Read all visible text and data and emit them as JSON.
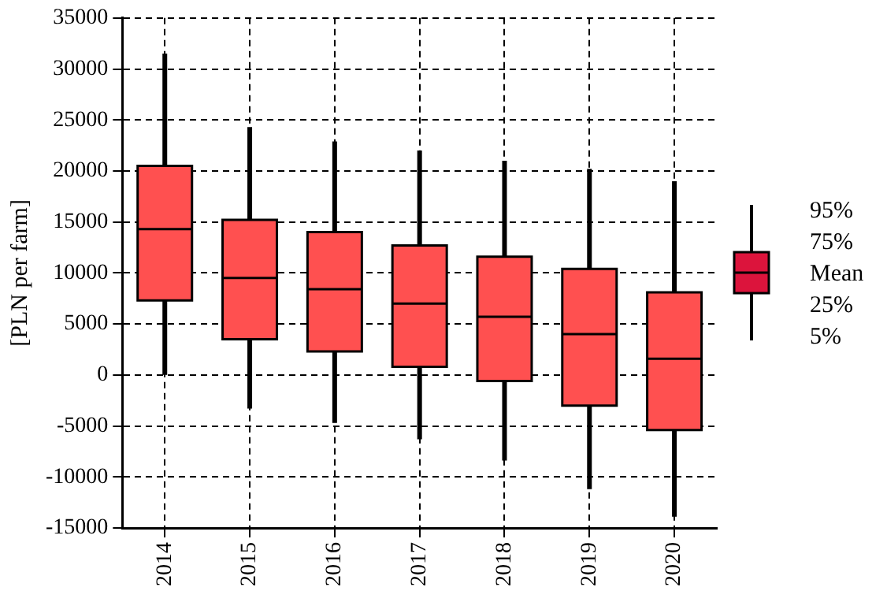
{
  "chart_data": {
    "type": "box",
    "ylabel": "[PLN per farm]",
    "categories": [
      "2014",
      "2015",
      "2016",
      "2017",
      "2018",
      "2019",
      "2020"
    ],
    "color": "#ff5050",
    "boxes": [
      {
        "low": 0,
        "q1": 7300,
        "median": 14300,
        "q3": 20500,
        "high": 31500
      },
      {
        "low": -3300,
        "q1": 3500,
        "median": 9500,
        "q3": 15200,
        "high": 24300
      },
      {
        "low": -4700,
        "q1": 2300,
        "median": 8400,
        "q3": 14000,
        "high": 22900
      },
      {
        "low": -6300,
        "q1": 800,
        "median": 7000,
        "q3": 12700,
        "high": 22000
      },
      {
        "low": -8400,
        "q1": -600,
        "median": 5700,
        "q3": 11600,
        "high": 21000
      },
      {
        "low": -11200,
        "q1": -3000,
        "median": 4000,
        "q3": 10400,
        "high": 20200
      },
      {
        "low": -13900,
        "q1": -5400,
        "median": 1600,
        "q3": 8100,
        "high": 19000
      }
    ],
    "ylim": [
      -15000,
      35000
    ],
    "yticks": [
      -15000,
      -10000,
      -5000,
      0,
      5000,
      10000,
      15000,
      20000,
      25000,
      30000,
      35000
    ],
    "grid": true,
    "annotations": [
      "95%",
      "75%",
      "Mean",
      "25%",
      "5%"
    ]
  }
}
